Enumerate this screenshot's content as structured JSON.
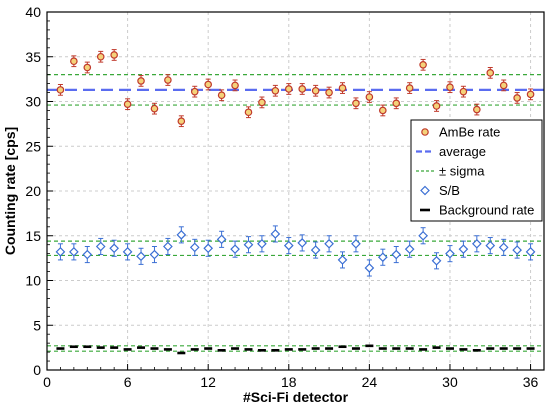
{
  "chart_data": {
    "type": "scatter",
    "xlabel": "#Sci-Fi detector",
    "ylabel": "Counting rate [cps]",
    "xlim": [
      0,
      37
    ],
    "ylim": [
      0,
      40
    ],
    "xticks": [
      0,
      6,
      12,
      18,
      24,
      30,
      36
    ],
    "yticks": [
      0,
      5,
      10,
      15,
      20,
      25,
      30,
      35,
      40
    ],
    "grid": "vertical dashed at x ticks, horizontal dashed at y ticks",
    "legend_position": "right, middle",
    "x": [
      1,
      2,
      3,
      4,
      5,
      6,
      7,
      8,
      9,
      10,
      11,
      12,
      13,
      14,
      15,
      16,
      17,
      18,
      19,
      20,
      21,
      22,
      23,
      24,
      25,
      26,
      27,
      28,
      29,
      30,
      31,
      32,
      33,
      34,
      35,
      36
    ],
    "series": [
      {
        "name": "AmBe rate",
        "marker": "circle",
        "color": "#c0392b",
        "values": [
          31.3,
          34.5,
          33.8,
          35.0,
          35.2,
          29.7,
          32.3,
          29.2,
          32.4,
          27.8,
          31.1,
          31.9,
          30.7,
          31.8,
          28.8,
          29.9,
          31.2,
          31.4,
          31.4,
          31.2,
          31.0,
          31.5,
          29.8,
          30.5,
          29.0,
          29.8,
          31.5,
          34.1,
          29.5,
          31.6,
          31.1,
          29.1,
          33.2,
          31.8,
          30.4,
          30.8
        ],
        "errors": [
          0.6,
          0.6,
          0.6,
          0.6,
          0.6,
          0.6,
          0.6,
          0.6,
          0.6,
          0.6,
          0.6,
          0.6,
          0.6,
          0.6,
          0.6,
          0.6,
          0.6,
          0.6,
          0.6,
          0.6,
          0.6,
          0.6,
          0.6,
          0.6,
          0.6,
          0.6,
          0.6,
          0.6,
          0.6,
          0.6,
          0.6,
          0.6,
          0.6,
          0.6,
          0.6,
          0.6
        ]
      },
      {
        "name": "S/B",
        "marker": "diamond",
        "color": "#3b6fd4",
        "values": [
          13.2,
          13.2,
          12.9,
          13.8,
          13.6,
          13.2,
          12.7,
          12.9,
          13.8,
          15.1,
          13.7,
          13.6,
          14.6,
          13.5,
          14.0,
          14.1,
          15.2,
          13.9,
          14.2,
          13.4,
          14.1,
          12.3,
          14.1,
          11.4,
          12.6,
          12.9,
          13.5,
          15.0,
          12.2,
          13.0,
          13.5,
          14.1,
          13.9,
          13.7,
          13.4,
          13.2
        ],
        "errors": [
          0.9,
          0.9,
          0.9,
          0.9,
          0.9,
          0.9,
          0.9,
          0.9,
          0.9,
          0.9,
          0.9,
          0.9,
          0.9,
          0.9,
          0.9,
          0.9,
          0.9,
          0.9,
          0.9,
          0.9,
          0.9,
          0.9,
          0.9,
          0.9,
          0.9,
          0.9,
          0.9,
          0.9,
          0.9,
          0.9,
          0.9,
          0.9,
          0.9,
          0.9,
          0.9,
          0.9
        ]
      },
      {
        "name": "Background rate",
        "marker": "dash",
        "color": "#000000",
        "values": [
          2.4,
          2.6,
          2.6,
          2.5,
          2.5,
          2.3,
          2.5,
          2.4,
          2.3,
          1.9,
          2.3,
          2.4,
          2.2,
          2.4,
          2.3,
          2.2,
          2.2,
          2.3,
          2.3,
          2.4,
          2.4,
          2.6,
          2.4,
          2.7,
          2.4,
          2.4,
          2.4,
          2.3,
          2.5,
          2.4,
          2.3,
          2.2,
          2.4,
          2.4,
          2.4,
          2.4
        ]
      }
    ],
    "lines": [
      {
        "name": "average",
        "style": "long-dash",
        "color": "#5a6cf0",
        "y": 31.3
      },
      {
        "name": "± sigma",
        "style": "short-dash",
        "color": "#3aa83a",
        "y": [
          33.0,
          29.6
        ]
      },
      {
        "name": "± sigma",
        "style": "short-dash",
        "color": "#3aa83a",
        "y": [
          14.4,
          12.8
        ]
      },
      {
        "name": "± sigma",
        "style": "short-dash",
        "color": "#3aa83a",
        "y": [
          2.7,
          2.1
        ]
      }
    ],
    "legend": [
      "AmBe rate",
      "average",
      "± sigma",
      "S/B",
      "Background rate"
    ]
  }
}
